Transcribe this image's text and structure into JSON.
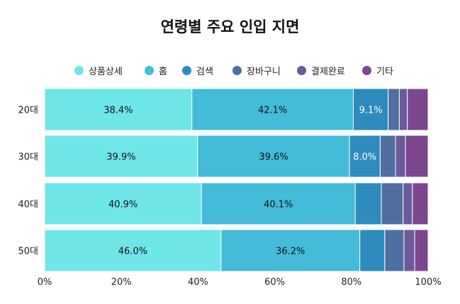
{
  "chart_data": {
    "type": "bar",
    "orientation": "horizontal",
    "stacked": true,
    "title": "연령별 주요 인입 지면",
    "categories": [
      "20대",
      "30대",
      "40대",
      "50대"
    ],
    "series": [
      {
        "name": "상품상세",
        "color": "#6ee6e8",
        "values": [
          38.4,
          39.9,
          40.9,
          46.0
        ]
      },
      {
        "name": "홈",
        "color": "#44bbd8",
        "values": [
          42.1,
          39.6,
          40.1,
          36.2
        ]
      },
      {
        "name": "검색",
        "color": "#2e8bbd",
        "values": [
          9.1,
          8.0,
          6.8,
          6.5
        ]
      },
      {
        "name": "장바구니",
        "color": "#4f6fa0",
        "values": [
          2.9,
          4.0,
          5.7,
          5.0
        ]
      },
      {
        "name": "결제완료",
        "color": "#6a5a9a",
        "values": [
          2.1,
          2.6,
          2.4,
          2.8
        ]
      },
      {
        "name": "기타",
        "color": "#7d4690",
        "values": [
          5.4,
          5.9,
          4.1,
          3.5
        ]
      }
    ],
    "data_labels": [
      [
        "38.4%",
        "42.1%",
        "9.1%"
      ],
      [
        "39.9%",
        "39.6%",
        "8.0%"
      ],
      [
        "40.9%",
        "40.1%"
      ],
      [
        "46.0%",
        "36.2%"
      ]
    ],
    "xlim": [
      0,
      100
    ],
    "xticks": [
      "0%",
      "20%",
      "40%",
      "60%",
      "80%",
      "100%"
    ],
    "grid": false,
    "legend_position": "top"
  }
}
